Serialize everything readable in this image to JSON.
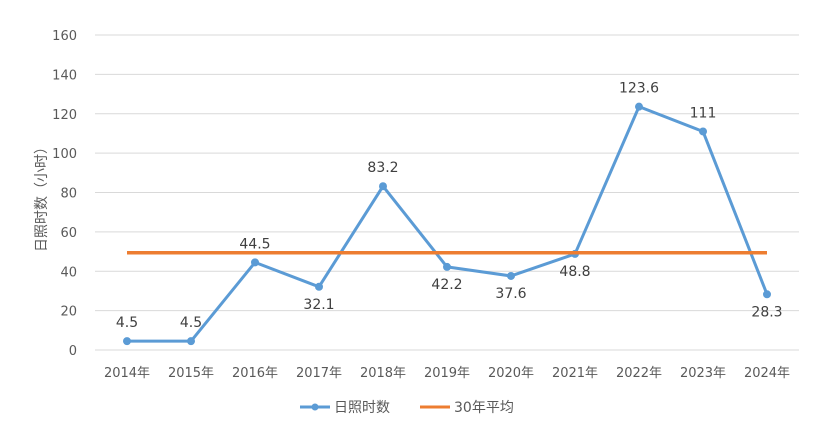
{
  "chart_data": {
    "type": "line",
    "title": "",
    "xlabel": "",
    "ylabel": "日照时数（小时）",
    "ylim": [
      0,
      160
    ],
    "yticks": [
      0,
      20,
      40,
      60,
      80,
      100,
      120,
      140,
      160
    ],
    "grid": true,
    "legend_position": "bottom",
    "categories": [
      "2014年",
      "2015年",
      "2016年",
      "2017年",
      "2018年",
      "2019年",
      "2020年",
      "2021年",
      "2022年",
      "2023年",
      "2024年"
    ],
    "series": [
      {
        "name": "日照时数",
        "color": "#5b9bd5",
        "values": [
          4.5,
          4.5,
          44.5,
          32.1,
          83.2,
          42.2,
          37.6,
          48.8,
          123.6,
          111,
          28.3
        ],
        "labels": [
          "4.5",
          "4.5",
          "44.5",
          "32.1",
          "83.2",
          "42.2",
          "37.6",
          "48.8",
          "123.6",
          "111",
          "28.3"
        ],
        "label_position": [
          "above",
          "above",
          "above",
          "below",
          "above",
          "below",
          "below",
          "below",
          "above",
          "above",
          "below"
        ],
        "markers": true
      },
      {
        "name": "30年平均",
        "color": "#ed7d31",
        "values": [
          49.4,
          49.4,
          49.4,
          49.4,
          49.4,
          49.4,
          49.4,
          49.4,
          49.4,
          49.4,
          49.4
        ],
        "markers": false
      }
    ]
  }
}
